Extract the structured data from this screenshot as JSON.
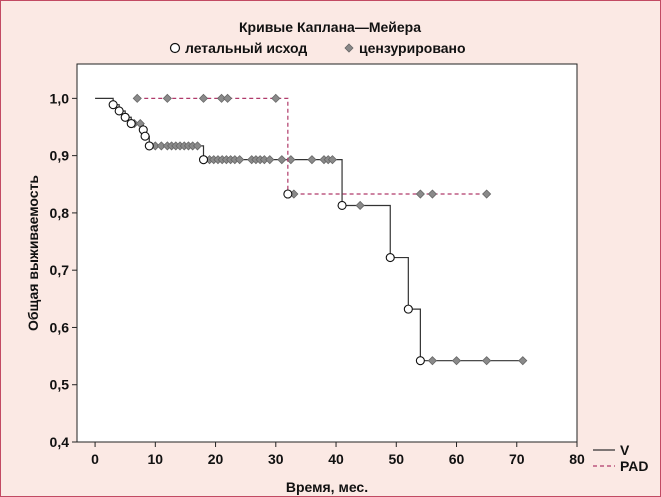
{
  "chart_data": {
    "type": "line",
    "step": true,
    "title": "Кривые Каплана—Мейера",
    "marker_legend": {
      "event_label": "летальный исход",
      "censored_label": "цензурировано"
    },
    "xlabel": "Время, мес.",
    "ylabel": "Общая выживаемость",
    "xlim": [
      -3,
      80
    ],
    "ylim": [
      0.4,
      1.06
    ],
    "xticks": [
      0,
      10,
      20,
      30,
      40,
      50,
      60,
      70,
      80
    ],
    "yticks": [
      0.4,
      0.5,
      0.6,
      0.7,
      0.8,
      0.9,
      1.0
    ],
    "ytick_labels": [
      "0,4",
      "0,5",
      "0,6",
      "0,7",
      "0,8",
      "0,9",
      "1,0"
    ],
    "grid": false,
    "legend_position": "bottom-right",
    "series": [
      {
        "name": "V",
        "color": "#333333",
        "dash": "solid",
        "steps": [
          [
            0,
            1.0
          ],
          [
            3,
            0.989
          ],
          [
            4,
            0.978
          ],
          [
            5,
            0.967
          ],
          [
            6,
            0.956
          ],
          [
            8,
            0.945
          ],
          [
            8.3,
            0.934
          ],
          [
            9,
            0.917
          ],
          [
            18,
            0.893
          ],
          [
            41,
            0.813
          ],
          [
            49,
            0.722
          ],
          [
            52,
            0.632
          ],
          [
            54,
            0.542
          ]
        ],
        "end_x": 71,
        "events": [
          [
            3,
            0.989
          ],
          [
            4,
            0.978
          ],
          [
            5,
            0.967
          ],
          [
            6,
            0.956
          ],
          [
            8,
            0.945
          ],
          [
            8.3,
            0.934
          ],
          [
            9,
            0.917
          ],
          [
            18,
            0.893
          ],
          [
            41,
            0.813
          ],
          [
            49,
            0.722
          ],
          [
            52,
            0.632
          ],
          [
            54,
            0.542
          ]
        ],
        "censored": [
          [
            6.5,
            0.956
          ],
          [
            7.5,
            0.956
          ],
          [
            10,
            0.917
          ],
          [
            11,
            0.917
          ],
          [
            12,
            0.917
          ],
          [
            12.7,
            0.917
          ],
          [
            13.4,
            0.917
          ],
          [
            14.1,
            0.917
          ],
          [
            14.8,
            0.917
          ],
          [
            15.5,
            0.917
          ],
          [
            16.2,
            0.917
          ],
          [
            17,
            0.917
          ],
          [
            19,
            0.893
          ],
          [
            19.7,
            0.893
          ],
          [
            20.4,
            0.893
          ],
          [
            21.1,
            0.893
          ],
          [
            21.8,
            0.893
          ],
          [
            22.5,
            0.893
          ],
          [
            23.2,
            0.893
          ],
          [
            24,
            0.893
          ],
          [
            26,
            0.893
          ],
          [
            26.7,
            0.893
          ],
          [
            27.4,
            0.893
          ],
          [
            28.1,
            0.893
          ],
          [
            29,
            0.893
          ],
          [
            31,
            0.893
          ],
          [
            32.5,
            0.893
          ],
          [
            36,
            0.893
          ],
          [
            38,
            0.893
          ],
          [
            38.7,
            0.893
          ],
          [
            39.4,
            0.893
          ],
          [
            44,
            0.813
          ],
          [
            56,
            0.542
          ],
          [
            60,
            0.542
          ],
          [
            65,
            0.542
          ],
          [
            71,
            0.542
          ]
        ]
      },
      {
        "name": "PAD",
        "color": "#b03a6a",
        "dash": "dashed",
        "steps": [
          [
            7,
            1.0
          ],
          [
            32,
            0.833
          ]
        ],
        "end_x": 65,
        "events": [
          [
            32,
            0.833
          ]
        ],
        "censored": [
          [
            7,
            1.0
          ],
          [
            12,
            1.0
          ],
          [
            18,
            1.0
          ],
          [
            21,
            1.0
          ],
          [
            22,
            1.0
          ],
          [
            30,
            1.0
          ],
          [
            33,
            0.833
          ],
          [
            54,
            0.833
          ],
          [
            56,
            0.833
          ],
          [
            65,
            0.833
          ]
        ]
      }
    ]
  }
}
